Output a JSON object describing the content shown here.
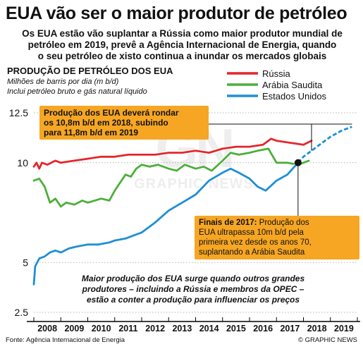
{
  "headline": "EUA vão ser o maior produtor de petróleo",
  "subhead_lines": [
    "Os EUA estão vão suplantar a Rússia como maior produtor mundial de",
    "petróleo em 2019, prevê a Agência Internacional de Energia, quando",
    "o seu petróleo de xisto continua a inundar os mercados globais"
  ],
  "watermark": "GN GRAPHIC NEWS",
  "callouts": {
    "forecast_lines": [
      "Produção dos EUA deverá rondar",
      "os 10,8m b/d em 2018, subindo",
      "para 11,8m b/d em 2019"
    ],
    "end2017_lead": "Finais de 2017:",
    "end2017_rest": " Produção dos",
    "end2017_lines": [
      "EUA ultrapassa 10m b/d pela",
      "primeira vez desde os anos 70,",
      "suplantando a Arábia Saudita"
    ]
  },
  "bottom_note_lines": [
    "Maior produção dos EUA surge quando outros grandes",
    "produtores – incluindo a Rússia e membros da OPEC –",
    "estão a conter a produção para influenciar os preços"
  ],
  "source": "Fonte: Agência Internacional de Energia",
  "credit": "© GRAPHIC NEWS",
  "colors": {
    "russia": "#e3262c",
    "saudi": "#4caf3a",
    "usa": "#1f8fd6",
    "callout": "#f6a623",
    "axis": "#000000"
  },
  "chart_data": {
    "type": "line",
    "title": "PRODUÇÃO DE PETRÓLEO DOS EUA",
    "ylabel": "Milhões de barris por dia (m b/d)",
    "note": "Inclui petróleo bruto e gás natural líquido",
    "xlim": [
      2008,
      2020
    ],
    "ylim": [
      2.5,
      12.5
    ],
    "x_ticks": [
      "2008",
      "2009",
      "2010",
      "2011",
      "2012",
      "2013",
      "2014",
      "2015",
      "2016",
      "2017",
      "2018",
      "2019"
    ],
    "y_ticks": [
      {
        "value": 2.5,
        "label": "2.5"
      },
      {
        "value": 5,
        "label": "5"
      },
      {
        "value": 10,
        "label": "10"
      },
      {
        "value": 12.5,
        "label": "12.5"
      }
    ],
    "legend_position": "top-right",
    "series": [
      {
        "name": "Rússia",
        "color_key": "russia",
        "points": [
          [
            2008.0,
            9.8
          ],
          [
            2008.1,
            10.0
          ],
          [
            2008.2,
            9.7
          ],
          [
            2008.3,
            10.0
          ],
          [
            2008.5,
            9.9
          ],
          [
            2008.8,
            10.1
          ],
          [
            2009.0,
            10.0
          ],
          [
            2009.5,
            10.1
          ],
          [
            2010.0,
            10.2
          ],
          [
            2010.5,
            10.3
          ],
          [
            2011.0,
            10.3
          ],
          [
            2011.5,
            10.4
          ],
          [
            2012.0,
            10.4
          ],
          [
            2012.5,
            10.4
          ],
          [
            2013.0,
            10.5
          ],
          [
            2013.5,
            10.5
          ],
          [
            2014.0,
            10.6
          ],
          [
            2014.5,
            10.5
          ],
          [
            2015.0,
            10.7
          ],
          [
            2015.5,
            10.8
          ],
          [
            2016.0,
            10.8
          ],
          [
            2016.5,
            10.9
          ],
          [
            2016.8,
            11.2
          ],
          [
            2017.0,
            11.1
          ],
          [
            2017.5,
            11.0
          ],
          [
            2018.0,
            10.9
          ],
          [
            2018.3,
            11.1
          ]
        ]
      },
      {
        "name": "Arábia Saudita",
        "color_key": "saudi",
        "points": [
          [
            2008.0,
            9.1
          ],
          [
            2008.2,
            9.2
          ],
          [
            2008.4,
            8.8
          ],
          [
            2008.6,
            8.0
          ],
          [
            2008.8,
            8.2
          ],
          [
            2009.0,
            7.8
          ],
          [
            2009.2,
            8.0
          ],
          [
            2009.5,
            7.9
          ],
          [
            2009.8,
            8.1
          ],
          [
            2010.0,
            8.0
          ],
          [
            2010.5,
            8.2
          ],
          [
            2010.8,
            8.1
          ],
          [
            2011.0,
            8.6
          ],
          [
            2011.2,
            9.0
          ],
          [
            2011.4,
            9.4
          ],
          [
            2011.6,
            9.3
          ],
          [
            2011.8,
            9.7
          ],
          [
            2012.0,
            9.9
          ],
          [
            2012.3,
            9.8
          ],
          [
            2012.6,
            9.9
          ],
          [
            2013.0,
            9.7
          ],
          [
            2013.3,
            9.6
          ],
          [
            2013.6,
            9.9
          ],
          [
            2014.0,
            9.7
          ],
          [
            2014.3,
            9.8
          ],
          [
            2014.6,
            9.6
          ],
          [
            2015.0,
            10.1
          ],
          [
            2015.3,
            10.5
          ],
          [
            2015.6,
            10.4
          ],
          [
            2016.0,
            10.5
          ],
          [
            2016.3,
            10.6
          ],
          [
            2016.7,
            10.7
          ],
          [
            2017.0,
            10.0
          ],
          [
            2017.4,
            10.0
          ],
          [
            2017.8,
            9.9
          ],
          [
            2018.0,
            10.0
          ],
          [
            2018.2,
            10.1
          ]
        ]
      },
      {
        "name": "Estados Unidos",
        "color_key": "usa",
        "points": [
          [
            2008.0,
            3.9
          ],
          [
            2008.05,
            4.8
          ],
          [
            2008.2,
            5.2
          ],
          [
            2008.4,
            5.3
          ],
          [
            2008.6,
            5.5
          ],
          [
            2008.8,
            5.6
          ],
          [
            2009.0,
            5.5
          ],
          [
            2009.3,
            5.7
          ],
          [
            2009.6,
            5.8
          ],
          [
            2010.0,
            5.9
          ],
          [
            2010.4,
            5.9
          ],
          [
            2010.8,
            6.0
          ],
          [
            2011.0,
            6.1
          ],
          [
            2011.4,
            6.2
          ],
          [
            2011.8,
            6.4
          ],
          [
            2012.0,
            6.5
          ],
          [
            2012.5,
            7.0
          ],
          [
            2013.0,
            7.6
          ],
          [
            2013.5,
            8.0
          ],
          [
            2014.0,
            8.4
          ],
          [
            2014.5,
            9.1
          ],
          [
            2015.0,
            9.5
          ],
          [
            2015.3,
            9.7
          ],
          [
            2015.6,
            9.5
          ],
          [
            2016.0,
            9.2
          ],
          [
            2016.3,
            8.8
          ],
          [
            2016.6,
            8.6
          ],
          [
            2017.0,
            9.1
          ],
          [
            2017.4,
            9.4
          ],
          [
            2017.8,
            10.0
          ]
        ],
        "forecast_points": [
          [
            2017.8,
            10.0
          ],
          [
            2018.0,
            10.3
          ],
          [
            2018.3,
            10.6
          ],
          [
            2018.6,
            10.9
          ],
          [
            2019.0,
            11.3
          ],
          [
            2019.4,
            11.6
          ],
          [
            2019.8,
            11.8
          ]
        ]
      }
    ]
  }
}
